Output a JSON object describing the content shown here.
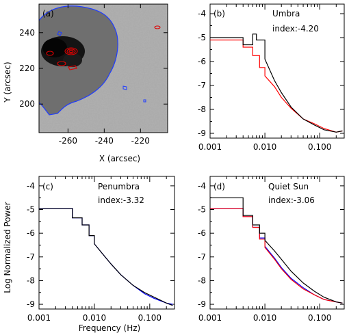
{
  "colors": {
    "black_series": "#000000",
    "red_series": "#ff0000",
    "blue_series": "#0000ff",
    "contour_blue": "#1f3cff",
    "contour_red": "#e00000"
  },
  "panel_a": {
    "tag": "(a)",
    "xlabel": "X (arcsec)",
    "ylabel": "Y (arcsec)",
    "xticks": [
      "-260",
      "-240",
      "-220"
    ],
    "yticks": [
      "200",
      "220",
      "240"
    ],
    "xlim": [
      -276,
      -205
    ],
    "ylim": [
      184,
      256
    ],
    "image": "sunspot-intensity-map"
  },
  "panel_b": {
    "tag": "(b)",
    "label": "Umbra",
    "index": "index:-4.20"
  },
  "panel_c": {
    "tag": "(c)",
    "label": "Penumbra",
    "index": "index:-3.32"
  },
  "panel_d": {
    "tag": "(d)",
    "label": "Quiet Sun",
    "index": "index:-3.06"
  },
  "shared_axes": {
    "ylabel": "Log Normalized Power",
    "xlabel": "Frequency (Hz)",
    "yticks": [
      "-4",
      "-5",
      "-6",
      "-7",
      "-8",
      "-9"
    ],
    "xticks": [
      "0.001",
      "0.010",
      "0.100"
    ]
  },
  "chart_data": [
    {
      "type": "image",
      "panel": "(a)",
      "xlabel": "X (arcsec)",
      "ylabel": "Y (arcsec)",
      "xlim": [
        -276,
        -205
      ],
      "ylim": [
        184,
        256
      ]
    },
    {
      "type": "line",
      "panel": "(b)",
      "title": "Umbra",
      "annotation": "index:-4.20",
      "xscale": "log",
      "xlim": [
        0.001,
        0.28
      ],
      "ylim": [
        -9.2,
        -3.6
      ],
      "series": [
        {
          "color": "#000000",
          "x": [
            0.001,
            0.0025,
            0.004,
            0.006,
            0.007,
            0.01,
            0.015,
            0.02,
            0.03,
            0.05,
            0.08,
            0.12,
            0.2,
            0.26
          ],
          "y": [
            -5.0,
            -5.0,
            -5.3,
            -4.85,
            -5.1,
            -5.9,
            -6.8,
            -7.3,
            -7.9,
            -8.4,
            -8.65,
            -8.85,
            -8.95,
            -8.9
          ]
        },
        {
          "color": "#ff0000",
          "x": [
            0.001,
            0.0025,
            0.004,
            0.006,
            0.008,
            0.01,
            0.015,
            0.02,
            0.03,
            0.05,
            0.08,
            0.12,
            0.2,
            0.26
          ],
          "y": [
            -5.1,
            -5.1,
            -5.4,
            -5.75,
            -6.25,
            -6.6,
            -7.05,
            -7.5,
            -7.95,
            -8.4,
            -8.6,
            -8.8,
            -8.95,
            -8.9
          ]
        }
      ]
    },
    {
      "type": "line",
      "panel": "(c)",
      "title": "Penumbra",
      "annotation": "index:-3.32",
      "xscale": "log",
      "xlim": [
        0.001,
        0.28
      ],
      "ylim": [
        -9.2,
        -3.6
      ],
      "series": [
        {
          "color": "#000000",
          "x": [
            0.001,
            0.0025,
            0.004,
            0.006,
            0.008,
            0.01,
            0.015,
            0.02,
            0.03,
            0.05,
            0.08,
            0.12,
            0.2,
            0.26
          ],
          "y": [
            -4.95,
            -4.95,
            -5.35,
            -5.65,
            -6.1,
            -6.45,
            -6.95,
            -7.3,
            -7.75,
            -8.2,
            -8.5,
            -8.7,
            -8.95,
            -9.05
          ]
        },
        {
          "color": "#0000ff",
          "x": [
            0.001,
            0.0025,
            0.004,
            0.006,
            0.008,
            0.01,
            0.015,
            0.02,
            0.03,
            0.05,
            0.08,
            0.12,
            0.2,
            0.26
          ],
          "y": [
            -4.95,
            -4.95,
            -5.35,
            -5.65,
            -6.1,
            -6.45,
            -6.95,
            -7.3,
            -7.75,
            -8.2,
            -8.55,
            -8.75,
            -8.95,
            -9.0
          ]
        }
      ]
    },
    {
      "type": "line",
      "panel": "(d)",
      "title": "Quiet Sun",
      "annotation": "index:-3.06",
      "xscale": "log",
      "xlim": [
        0.001,
        0.28
      ],
      "ylim": [
        -9.2,
        -3.6
      ],
      "series": [
        {
          "color": "#000000",
          "x": [
            0.001,
            0.0025,
            0.004,
            0.006,
            0.008,
            0.01,
            0.015,
            0.02,
            0.03,
            0.05,
            0.08,
            0.12,
            0.2,
            0.26
          ],
          "y": [
            -4.5,
            -4.5,
            -5.25,
            -5.65,
            -6.0,
            -6.3,
            -6.75,
            -7.1,
            -7.6,
            -8.1,
            -8.45,
            -8.7,
            -8.9,
            -8.95
          ]
        },
        {
          "color": "#ff0000",
          "x": [
            0.001,
            0.0025,
            0.004,
            0.006,
            0.008,
            0.01,
            0.015,
            0.02,
            0.03,
            0.05,
            0.08,
            0.12,
            0.2,
            0.26
          ],
          "y": [
            -4.95,
            -4.95,
            -5.3,
            -5.75,
            -6.25,
            -6.6,
            -7.1,
            -7.5,
            -7.95,
            -8.35,
            -8.6,
            -8.8,
            -8.9,
            -8.95
          ]
        },
        {
          "color": "#0000ff",
          "x": [
            0.001,
            0.0025,
            0.004,
            0.006,
            0.008,
            0.01,
            0.015,
            0.02,
            0.03,
            0.05,
            0.08,
            0.12,
            0.2,
            0.26
          ],
          "y": [
            -4.95,
            -4.95,
            -5.3,
            -5.75,
            -6.2,
            -6.55,
            -7.05,
            -7.45,
            -7.9,
            -8.3,
            -8.6,
            -8.8,
            -8.9,
            -8.95
          ]
        }
      ]
    }
  ]
}
